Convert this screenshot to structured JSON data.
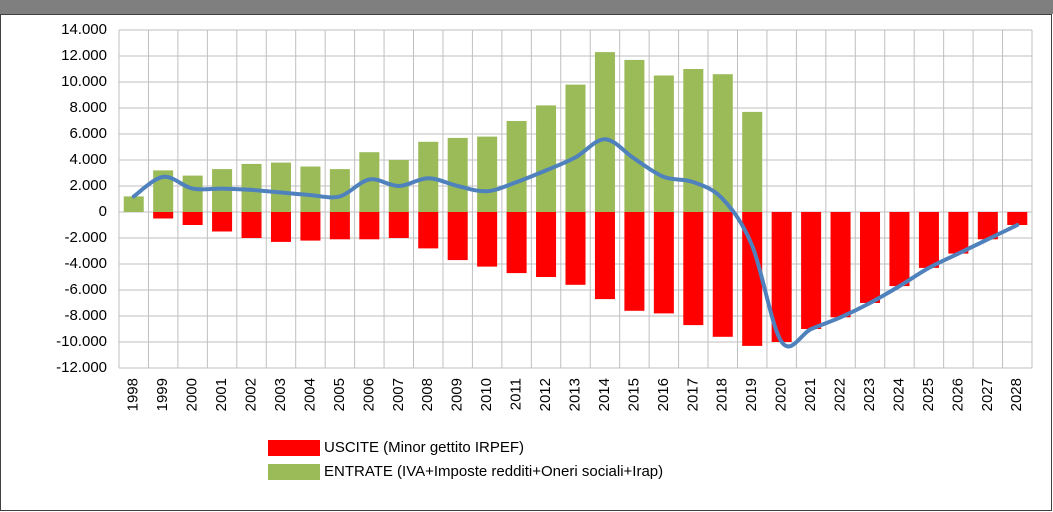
{
  "chart_data": {
    "type": "bar",
    "categories": [
      "1998",
      "1999",
      "2000",
      "2001",
      "2002",
      "2003",
      "2004",
      "2005",
      "2006",
      "2007",
      "2008",
      "2009",
      "2010",
      "2011",
      "2012",
      "2013",
      "2014",
      "2015",
      "2016",
      "2017",
      "2018",
      "2019",
      "2020",
      "2021",
      "2022",
      "2023",
      "2024",
      "2025",
      "2026",
      "2027",
      "2028"
    ],
    "series": [
      {
        "name": "USCITE (Minor gettito IRPEF)",
        "color": "#ff0000",
        "type": "bar",
        "values": [
          null,
          -500,
          -1000,
          -1500,
          -2000,
          -2300,
          -2200,
          -2100,
          -2100,
          -2000,
          -2800,
          -3700,
          -4200,
          -4700,
          -5000,
          -5600,
          -6700,
          -7600,
          -7800,
          -8700,
          -9600,
          -10300,
          -10000,
          -9000,
          -8100,
          -7000,
          -5700,
          -4300,
          -3200,
          -2100,
          -1000
        ]
      },
      {
        "name": "ENTRATE (IVA+Imposte redditi+Oneri sociali+Irap)",
        "color": "#9bbb59",
        "type": "bar",
        "values": [
          1200,
          3200,
          2800,
          3300,
          3700,
          3800,
          3500,
          3300,
          4600,
          4000,
          5400,
          5700,
          5800,
          7000,
          8200,
          9800,
          12300,
          11700,
          10500,
          11000,
          10600,
          7700,
          null,
          null,
          null,
          null,
          null,
          null,
          null,
          null,
          null
        ]
      },
      {
        "color": "#4f81bd",
        "type": "line",
        "values": [
          1200,
          2700,
          1800,
          1800,
          1700,
          1500,
          1300,
          1200,
          2500,
          2000,
          2600,
          2000,
          1600,
          2300,
          3200,
          4200,
          5600,
          4100,
          2700,
          2300,
          1000,
          -2600,
          -10000,
          -9000,
          -8100,
          -7000,
          -5700,
          -4300,
          -3200,
          -2100,
          -1000
        ]
      }
    ],
    "ylim": [
      -12000,
      14000
    ],
    "yticks": [
      {
        "value": -12000,
        "label": "-12.000"
      },
      {
        "value": -10000,
        "label": "-10.000"
      },
      {
        "value": -8000,
        "label": "-8.000"
      },
      {
        "value": -6000,
        "label": "-6.000"
      },
      {
        "value": -4000,
        "label": "-4.000"
      },
      {
        "value": -2000,
        "label": "-2.000"
      },
      0,
      {
        "value": 2000,
        "label": "2.000"
      },
      {
        "value": 4000,
        "label": "4.000"
      },
      {
        "value": 6000,
        "label": "6.000"
      },
      {
        "value": 8000,
        "label": "8.000"
      },
      {
        "value": 10000,
        "label": "10.000"
      },
      {
        "value": 12000,
        "label": "12.000"
      },
      {
        "value": 14000,
        "label": "14.000"
      }
    ],
    "grid": true,
    "legend": "bottom"
  }
}
